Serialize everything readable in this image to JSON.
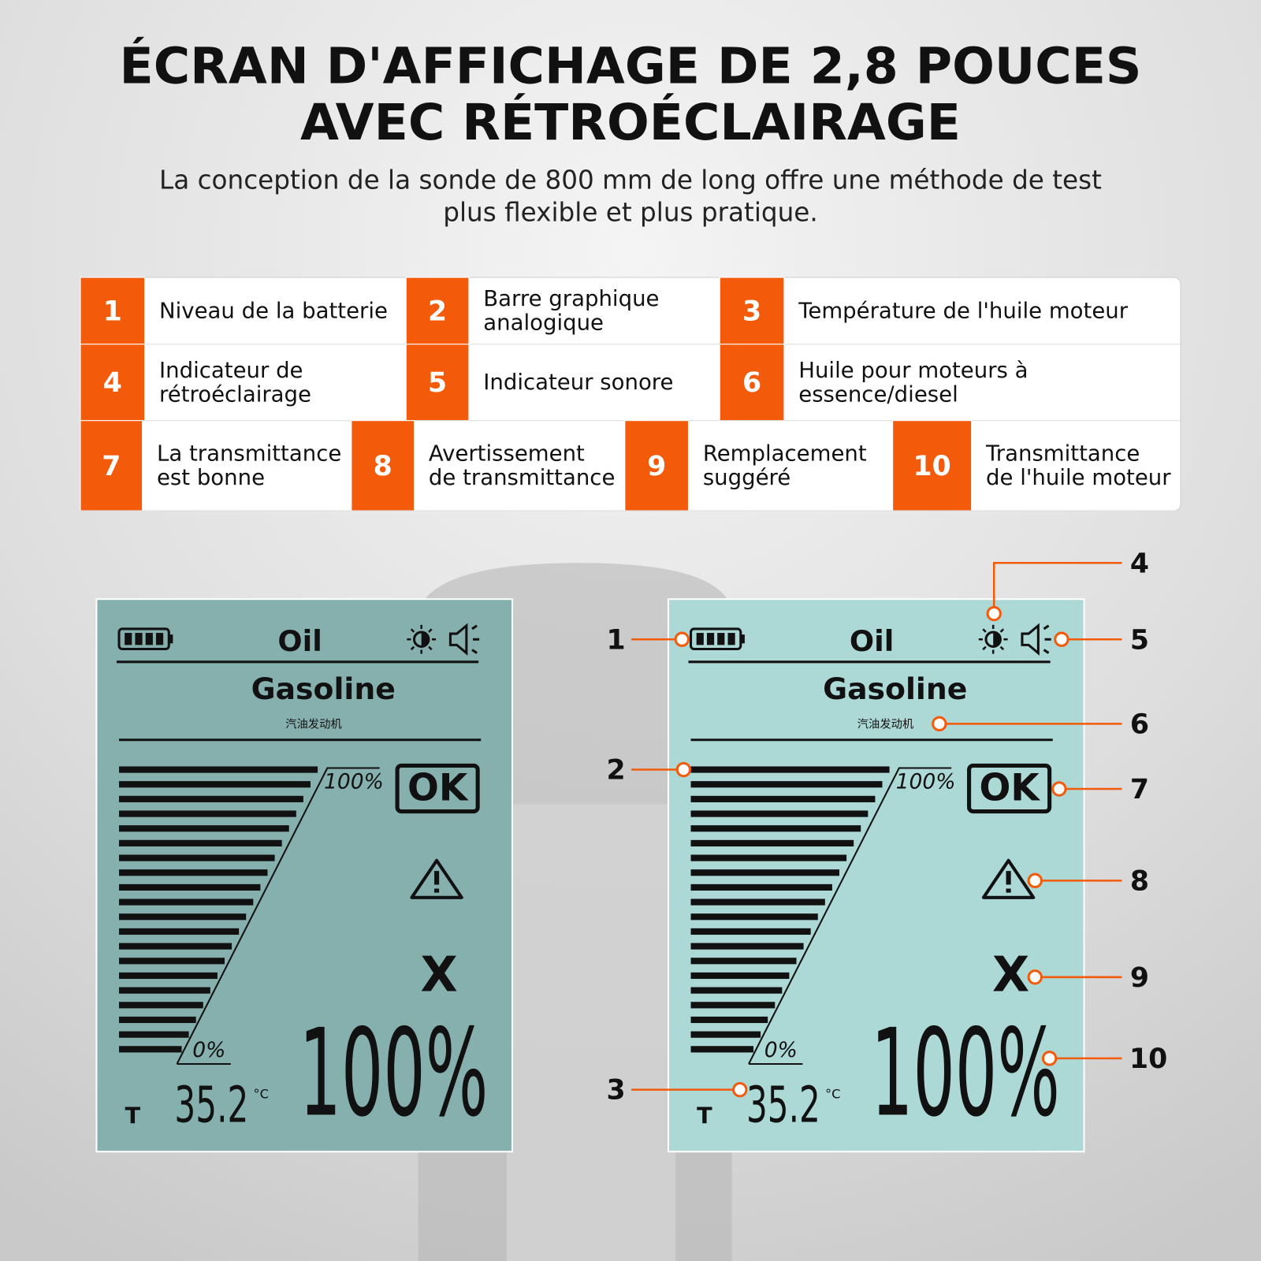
{
  "header": {
    "title_lines": [
      "ÉCRAN D'AFFICHAGE DE 2,8 POUCES",
      "AVEC RÉTROÉCLAIRAGE"
    ],
    "subtitle_lines": [
      "La conception de la sonde de 800 mm de long offre une méthode de test",
      "plus flexible et plus pratique."
    ]
  },
  "legend": {
    "items": [
      {
        "number": 1,
        "lines": [
          "Niveau de la batterie"
        ]
      },
      {
        "number": 2,
        "lines": [
          "Barre graphique",
          "analogique"
        ]
      },
      {
        "number": 3,
        "lines": [
          "Température de l'huile moteur"
        ]
      },
      {
        "number": 4,
        "lines": [
          "Indicateur de",
          "rétroéclairage"
        ]
      },
      {
        "number": 5,
        "lines": [
          "Indicateur sonore"
        ]
      },
      {
        "number": 6,
        "lines": [
          "Huile pour moteurs à",
          "essence/diesel"
        ]
      },
      {
        "number": 7,
        "lines": [
          "La transmittance",
          "est bonne"
        ]
      },
      {
        "number": 8,
        "lines": [
          "Avertissement",
          "de transmittance"
        ]
      },
      {
        "number": 9,
        "lines": [
          "Remplacement",
          "suggéré"
        ]
      },
      {
        "number": 10,
        "lines": [
          "Transmittance",
          "de l'huile moteur"
        ]
      }
    ]
  },
  "screen": {
    "title": "Oil",
    "fuel": "Gasoline",
    "fuel_cn": "汽油发动机",
    "graph_max": "100%",
    "graph_min": "0%",
    "status": "OK",
    "replace": "X",
    "temp_label": "T",
    "temp": "35.2",
    "temp_unit": "°C",
    "reading": "100%"
  },
  "callouts": [
    1,
    2,
    3,
    4,
    5,
    6,
    7,
    8,
    9,
    10
  ]
}
